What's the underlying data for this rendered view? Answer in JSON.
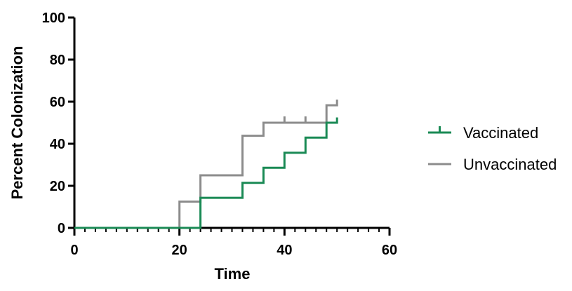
{
  "chart_data": {
    "type": "line",
    "subtype": "step (Kaplan-Meier style)",
    "xlabel": "Time",
    "ylabel": "Percent Colonization",
    "xlim": [
      0,
      60
    ],
    "ylim": [
      0,
      100
    ],
    "x_ticks": [
      0,
      20,
      40,
      60
    ],
    "y_ticks": [
      0,
      20,
      40,
      60,
      80,
      100
    ],
    "x_minor_tick_step": 2,
    "grid": false,
    "legend_position": "right",
    "series": [
      {
        "name": "Vaccinated",
        "color": "#1a8a55",
        "points": [
          [
            0,
            0
          ],
          [
            24,
            0
          ],
          [
            24,
            14.3
          ],
          [
            32,
            14.3
          ],
          [
            32,
            21.4
          ],
          [
            36,
            21.4
          ],
          [
            36,
            28.6
          ],
          [
            40,
            28.6
          ],
          [
            40,
            35.7
          ],
          [
            44,
            35.7
          ],
          [
            44,
            42.9
          ],
          [
            48,
            42.9
          ],
          [
            48,
            50
          ],
          [
            50,
            50
          ],
          [
            50,
            52.5
          ]
        ],
        "censor_marks": []
      },
      {
        "name": "Unvaccinated",
        "color": "#8c8c8c",
        "points": [
          [
            0,
            0
          ],
          [
            20,
            0
          ],
          [
            20,
            12.5
          ],
          [
            24,
            12.5
          ],
          [
            24,
            25
          ],
          [
            32,
            25
          ],
          [
            32,
            43.8
          ],
          [
            36,
            43.8
          ],
          [
            36,
            50
          ],
          [
            48,
            50
          ],
          [
            48,
            58.3
          ],
          [
            50,
            58.3
          ],
          [
            50,
            61
          ]
        ],
        "censor_marks": [
          [
            40,
            50
          ],
          [
            44,
            50
          ]
        ]
      }
    ]
  }
}
